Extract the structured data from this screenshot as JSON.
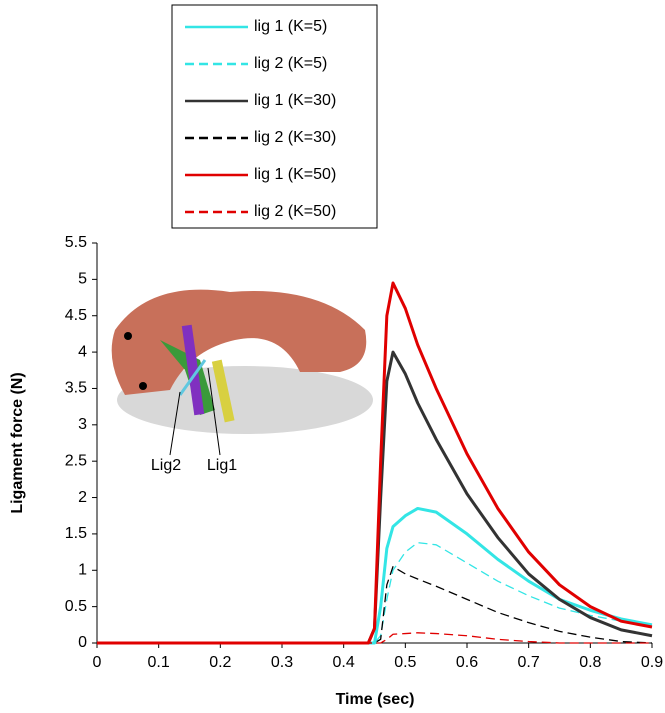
{
  "chart_data": {
    "type": "line",
    "x_label": "Time (sec)",
    "y_label": "Ligament force (N)",
    "x": [
      0,
      0.44,
      0.45,
      0.46,
      0.47,
      0.48,
      0.5,
      0.52,
      0.55,
      0.6,
      0.65,
      0.7,
      0.75,
      0.8,
      0.85,
      0.9
    ],
    "series": [
      {
        "name": "lig 1 (K=5)",
        "color": "#33e5e5",
        "dashed": false,
        "width": 3,
        "values": [
          0,
          0,
          0,
          0.5,
          1.3,
          1.6,
          1.75,
          1.85,
          1.8,
          1.5,
          1.15,
          0.85,
          0.6,
          0.45,
          0.33,
          0.25
        ]
      },
      {
        "name": "lig 2 (K=5)",
        "color": "#33e5e5",
        "dashed": true,
        "width": 1.3,
        "values": [
          0,
          0,
          0,
          0.1,
          0.6,
          1.0,
          1.25,
          1.38,
          1.35,
          1.1,
          0.85,
          0.65,
          0.48,
          0.38,
          0.3,
          0.22
        ]
      },
      {
        "name": "lig 1 (K=30)",
        "color": "#333333",
        "dashed": false,
        "width": 3,
        "values": [
          0,
          0,
          0.2,
          2.0,
          3.6,
          4.0,
          3.7,
          3.3,
          2.8,
          2.05,
          1.45,
          0.95,
          0.6,
          0.35,
          0.18,
          0.1
        ]
      },
      {
        "name": "lig 2 (K=30)",
        "color": "#000000",
        "dashed": true,
        "width": 1.3,
        "values": [
          0,
          0,
          0,
          0.05,
          0.8,
          1.05,
          0.95,
          0.88,
          0.78,
          0.6,
          0.42,
          0.28,
          0.16,
          0.08,
          0.02,
          0
        ]
      },
      {
        "name": "lig 1 (K=50)",
        "color": "#e00000",
        "dashed": false,
        "width": 3,
        "values": [
          0,
          0,
          0.2,
          2.5,
          4.5,
          4.95,
          4.6,
          4.1,
          3.5,
          2.6,
          1.85,
          1.25,
          0.8,
          0.5,
          0.3,
          0.22
        ]
      },
      {
        "name": "lig 2 (K=50)",
        "color": "#e00000",
        "dashed": true,
        "width": 1.3,
        "values": [
          0,
          0,
          0,
          0,
          0.05,
          0.12,
          0.13,
          0.14,
          0.13,
          0.1,
          0.05,
          0.02,
          0,
          0,
          0,
          0
        ]
      }
    ],
    "xlim": [
      0,
      0.9
    ],
    "xticks": [
      0,
      0.1,
      0.2,
      0.3,
      0.4,
      0.5,
      0.6,
      0.7,
      0.8,
      0.9
    ],
    "ylim": [
      0,
      5.5
    ],
    "yticks": [
      0,
      0.5,
      1,
      1.5,
      2,
      2.5,
      3,
      3.5,
      4,
      4.5,
      5,
      5.5
    ],
    "annotations": [
      "Lig2",
      "Lig1"
    ]
  }
}
